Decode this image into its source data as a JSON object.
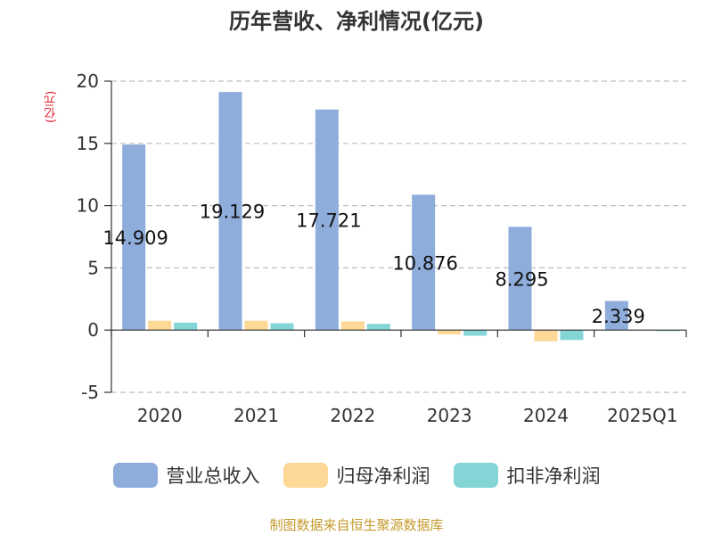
{
  "chart_data": {
    "type": "bar",
    "title": "历年营收、净利情况(亿元)",
    "ylabel": "(亿元)",
    "xlabel": "",
    "ylim": [
      -5,
      20
    ],
    "yticks": [
      -5,
      0,
      5,
      10,
      15,
      20
    ],
    "categories": [
      "2020",
      "2021",
      "2022",
      "2023",
      "2024",
      "2025Q1"
    ],
    "grid": true,
    "legend_position": "bottom",
    "series": [
      {
        "name": "营业总收入",
        "color": "#8eaddb",
        "values": [
          14.909,
          19.129,
          17.721,
          10.876,
          8.295,
          2.339
        ],
        "data_labels": [
          "14.909",
          "19.129",
          "17.721",
          "10.876",
          "8.295",
          "2.339"
        ]
      },
      {
        "name": "归母净利润",
        "color": "#fdd896",
        "values": [
          0.75,
          0.75,
          0.7,
          -0.35,
          -0.9,
          -0.05
        ]
      },
      {
        "name": "扣非净利润",
        "color": "#84d5d6",
        "values": [
          0.6,
          0.55,
          0.5,
          -0.45,
          -0.8,
          -0.08
        ]
      }
    ]
  },
  "source": "制图数据来自恒生聚源数据库"
}
